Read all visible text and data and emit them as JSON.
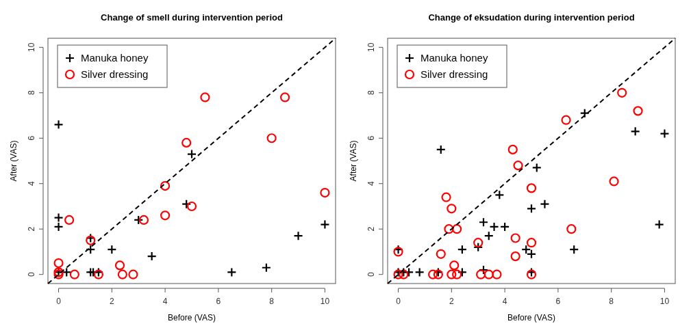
{
  "chart_data": [
    {
      "type": "scatter",
      "title": "Change of smell during intervention period",
      "xlabel": "Before (VAS)",
      "ylabel": "After (VAS)",
      "xlim": [
        -0.4,
        10.4
      ],
      "ylim": [
        -0.4,
        10.4
      ],
      "xticks": [
        0,
        2,
        4,
        6,
        8,
        10
      ],
      "yticks": [
        0,
        2,
        4,
        6,
        8,
        10
      ],
      "legend": "top left",
      "grid": false,
      "series": [
        {
          "name": "Manuka honey",
          "color": "#000000",
          "marker": "cross",
          "x": [
            0,
            0,
            0,
            0,
            0.3,
            1.2,
            1.2,
            1.2,
            1.3,
            1.5,
            2,
            3,
            3.5,
            4.8,
            5,
            6.5,
            7.8,
            9,
            10
          ],
          "values": [
            6.6,
            2.5,
            2.1,
            0.1,
            0.1,
            1.6,
            1.1,
            0.1,
            0.1,
            0.1,
            1.1,
            2.4,
            0.8,
            3.1,
            5.3,
            0.1,
            0.3,
            1.7,
            2.2
          ]
        },
        {
          "name": "Silver dressing",
          "color": "#ff0000",
          "marker": "circle",
          "x": [
            0,
            0,
            0,
            0.4,
            0.6,
            1.2,
            1.5,
            2.3,
            2.4,
            2.8,
            3.2,
            4,
            4,
            4.8,
            5,
            5.5,
            8,
            8.5,
            10
          ],
          "values": [
            0.5,
            0.1,
            0,
            2.4,
            0,
            1.5,
            0,
            0.4,
            0,
            0,
            2.4,
            3.9,
            2.6,
            5.8,
            3,
            7.8,
            6,
            7.8,
            3.6
          ]
        },
        {
          "type": "line",
          "color": "#000000",
          "line_style": "dashed",
          "x": [
            -0.4,
            10.4
          ],
          "values": [
            -0.4,
            10.4
          ]
        }
      ]
    },
    {
      "type": "scatter",
      "title": "Change of eksudation during intervention period",
      "xlabel": "Before (VAS)",
      "ylabel": "After (VAS)",
      "xlim": [
        -0.4,
        10.4
      ],
      "ylim": [
        -0.4,
        10.4
      ],
      "xticks": [
        0,
        2,
        4,
        6,
        8,
        10
      ],
      "yticks": [
        0,
        2,
        4,
        6,
        8,
        10
      ],
      "legend": "top left",
      "grid": false,
      "series": [
        {
          "name": "Manuka honey",
          "color": "#000000",
          "marker": "cross",
          "x": [
            0,
            0,
            0.2,
            0.4,
            0.8,
            1.5,
            1.6,
            2.4,
            2.4,
            3,
            3.2,
            3.2,
            3.4,
            3.6,
            4,
            3.8,
            4.8,
            5,
            5,
            5,
            5.2,
            5.5,
            6.6,
            7,
            8.9,
            9.8,
            10
          ],
          "values": [
            1.1,
            0.1,
            0.1,
            0.1,
            0.1,
            0.1,
            5.5,
            0.1,
            1.1,
            1.2,
            2.3,
            0.2,
            1.7,
            2.1,
            2.1,
            3.5,
            1.1,
            0.9,
            2.9,
            0.1,
            4.7,
            3.1,
            1.1,
            7.1,
            6.3,
            2.2,
            6.2
          ]
        },
        {
          "name": "Silver dressing",
          "color": "#ff0000",
          "marker": "circle",
          "x": [
            0,
            0,
            0.2,
            1.3,
            1.5,
            1.6,
            1.8,
            1.9,
            2,
            2,
            2.1,
            2.2,
            2.2,
            3,
            3.1,
            3.4,
            3.7,
            4.3,
            4.4,
            4.4,
            4.5,
            5,
            5,
            5,
            6.3,
            6.5,
            8.1,
            8.4,
            9
          ],
          "values": [
            1,
            0,
            0,
            0,
            0,
            0.9,
            3.4,
            2,
            2.9,
            0,
            0.4,
            2,
            0,
            1.4,
            0,
            0,
            0,
            5.5,
            1.6,
            0.8,
            4.8,
            3.8,
            1.4,
            0,
            6.8,
            2,
            4.1,
            8,
            7.2
          ]
        },
        {
          "type": "line",
          "color": "#000000",
          "line_style": "dashed",
          "x": [
            -0.4,
            10.4
          ],
          "values": [
            -0.4,
            10.4
          ]
        }
      ]
    }
  ]
}
